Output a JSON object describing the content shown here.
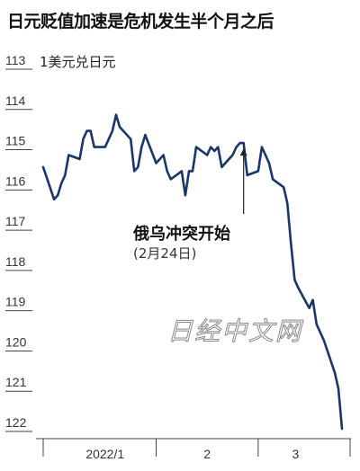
{
  "title": "日元贬值加速是危机发生半个月之后",
  "chart_data": {
    "type": "line",
    "unit_label": "1美元兑日元",
    "y_inverted": true,
    "ylim": [
      113,
      122
    ],
    "yticks": [
      "113",
      "114",
      "115",
      "116",
      "117",
      "118",
      "119",
      "120",
      "121",
      "122"
    ],
    "xticks": [
      "2022/1",
      "2",
      "3"
    ],
    "grid": false,
    "line_color": "#1a3568",
    "series": [
      {
        "x": [
          "2021-12-31",
          "2022-01-03",
          "2022-01-04",
          "2022-01-05",
          "2022-01-06",
          "2022-01-07",
          "2022-01-10",
          "2022-01-11",
          "2022-01-12",
          "2022-01-13",
          "2022-01-14",
          "2022-01-17",
          "2022-01-18",
          "2022-01-19",
          "2022-01-20",
          "2022-01-21",
          "2022-01-24",
          "2022-01-25",
          "2022-01-26",
          "2022-01-27",
          "2022-01-28",
          "2022-01-31",
          "2022-02-01",
          "2022-02-02",
          "2022-02-03",
          "2022-02-04",
          "2022-02-07",
          "2022-02-08",
          "2022-02-09",
          "2022-02-10",
          "2022-02-11",
          "2022-02-14",
          "2022-02-15",
          "2022-02-16",
          "2022-02-17",
          "2022-02-18",
          "2022-02-21",
          "2022-02-22",
          "2022-02-23",
          "2022-02-24",
          "2022-02-25",
          "2022-02-28",
          "2022-03-01",
          "2022-03-02",
          "2022-03-03",
          "2022-03-04",
          "2022-03-07",
          "2022-03-08",
          "2022-03-09",
          "2022-03-10",
          "2022-03-11",
          "2022-03-14",
          "2022-03-15",
          "2022-03-16",
          "2022-03-17",
          "2022-03-18",
          "2022-03-21",
          "2022-03-22",
          "2022-03-23"
        ],
        "values": [
          115.5,
          116.3,
          116.2,
          115.9,
          115.7,
          115.2,
          115.3,
          114.8,
          114.6,
          114.6,
          115.0,
          115.0,
          114.8,
          114.6,
          114.2,
          114.5,
          114.8,
          115.6,
          115.5,
          115.0,
          114.7,
          115.4,
          115.3,
          115.2,
          115.6,
          115.8,
          115.6,
          116.2,
          115.6,
          115.6,
          115.0,
          115.2,
          115.0,
          115.1,
          115.0,
          115.5,
          115.2,
          115.0,
          114.9,
          114.9,
          115.7,
          115.6,
          115.0,
          115.2,
          115.4,
          115.8,
          116.0,
          116.4,
          117.4,
          118.3,
          118.5,
          119.0,
          118.8,
          119.4,
          119.6,
          119.8,
          120.6,
          121.0,
          122.0
        ]
      }
    ],
    "annotation": {
      "x": "2022-02-24",
      "label": "俄乌冲突开始",
      "sublabel": "(2月24日)"
    }
  },
  "watermark": "日经中文网"
}
